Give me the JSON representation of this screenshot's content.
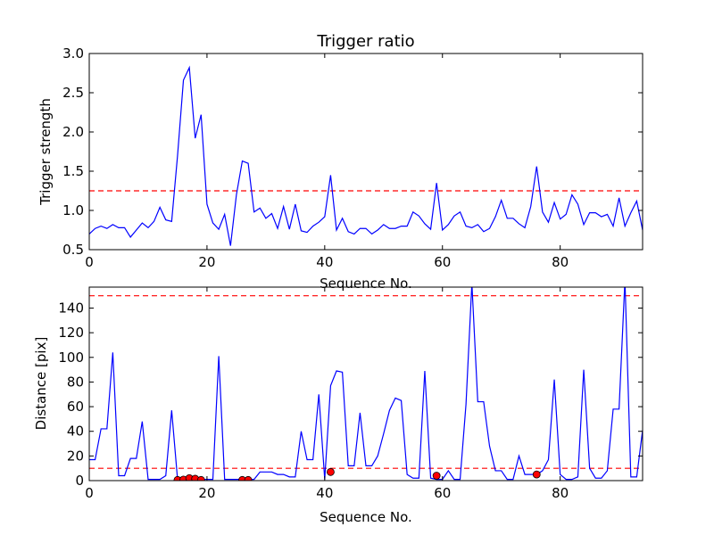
{
  "colors": {
    "line": "#0000ff",
    "threshold": "#ff0000",
    "marker": "#ff0000",
    "axes": "#000000",
    "background": "#ffffff"
  },
  "chart_data": [
    {
      "type": "line",
      "title": "Trigger ratio",
      "xlabel": "Sequence No.",
      "ylabel": "Trigger strength",
      "xlim": [
        0,
        94
      ],
      "ylim": [
        0.5,
        3.0
      ],
      "xticks": [
        0,
        20,
        40,
        60,
        80
      ],
      "yticks": [
        0.5,
        1.0,
        1.5,
        2.0,
        2.5,
        3.0
      ],
      "ytick_labels": [
        "0.5",
        "1.0",
        "1.5",
        "2.0",
        "2.5",
        "3.0"
      ],
      "threshold": 1.25,
      "series": [
        {
          "values": [
            0.7,
            0.77,
            0.8,
            0.77,
            0.82,
            0.78,
            0.78,
            0.66,
            0.75,
            0.84,
            0.78,
            0.86,
            1.04,
            0.88,
            0.86,
            1.7,
            2.66,
            2.82,
            1.92,
            2.22,
            1.08,
            0.84,
            0.76,
            0.95,
            0.55,
            1.2,
            1.63,
            1.6,
            0.98,
            1.03,
            0.9,
            0.96,
            0.77,
            1.05,
            0.76,
            1.08,
            0.74,
            0.72,
            0.8,
            0.85,
            0.92,
            1.45,
            0.75,
            0.9,
            0.73,
            0.7,
            0.77,
            0.77,
            0.7,
            0.75,
            0.82,
            0.77,
            0.77,
            0.8,
            0.8,
            0.98,
            0.93,
            0.83,
            0.76,
            1.35,
            0.75,
            0.82,
            0.93,
            0.98,
            0.8,
            0.78,
            0.82,
            0.73,
            0.77,
            0.92,
            1.13,
            0.9,
            0.9,
            0.83,
            0.78,
            1.05,
            1.56,
            0.98,
            0.85,
            1.1,
            0.89,
            0.95,
            1.2,
            1.08,
            0.82,
            0.97,
            0.97,
            0.92,
            0.95,
            0.8,
            1.16,
            0.8,
            0.97,
            1.12,
            0.75
          ]
        }
      ]
    },
    {
      "type": "line",
      "title": "",
      "xlabel": "Sequence No.",
      "ylabel": "Distance [pix]",
      "xlim": [
        0,
        94
      ],
      "ylim": [
        0,
        157
      ],
      "xticks": [
        0,
        20,
        40,
        60,
        80
      ],
      "yticks": [
        0,
        20,
        40,
        60,
        80,
        100,
        120,
        140
      ],
      "thresholds": [
        10,
        150
      ],
      "series": [
        {
          "values": [
            17,
            17,
            42,
            42,
            104,
            4,
            4,
            18,
            18,
            48,
            1,
            1,
            1,
            4,
            57,
            1,
            1,
            1,
            1,
            1,
            1,
            1,
            101,
            1,
            1,
            1,
            1,
            1,
            1,
            7,
            7,
            7,
            5,
            5,
            3,
            3,
            40,
            17,
            17,
            70,
            1,
            77,
            89,
            88,
            12,
            12,
            55,
            12,
            12,
            20,
            38,
            57,
            67,
            65,
            5,
            2,
            2,
            89,
            2,
            1,
            1,
            8,
            1,
            1,
            62,
            160,
            64,
            64,
            28,
            8,
            8,
            1,
            1,
            20,
            5,
            5,
            5,
            8,
            17,
            82,
            5,
            1,
            1,
            3,
            90,
            10,
            2,
            2,
            8,
            58,
            58,
            163,
            3,
            3,
            41
          ]
        }
      ],
      "markers": [
        {
          "x": 15,
          "y": 0.5
        },
        {
          "x": 16,
          "y": 0.8
        },
        {
          "x": 17,
          "y": 2
        },
        {
          "x": 18,
          "y": 1.5
        },
        {
          "x": 19,
          "y": 0.5
        },
        {
          "x": 26,
          "y": 0.5
        },
        {
          "x": 27,
          "y": 0.5
        },
        {
          "x": 41,
          "y": 7
        },
        {
          "x": 59,
          "y": 4
        },
        {
          "x": 76,
          "y": 5
        }
      ]
    }
  ]
}
